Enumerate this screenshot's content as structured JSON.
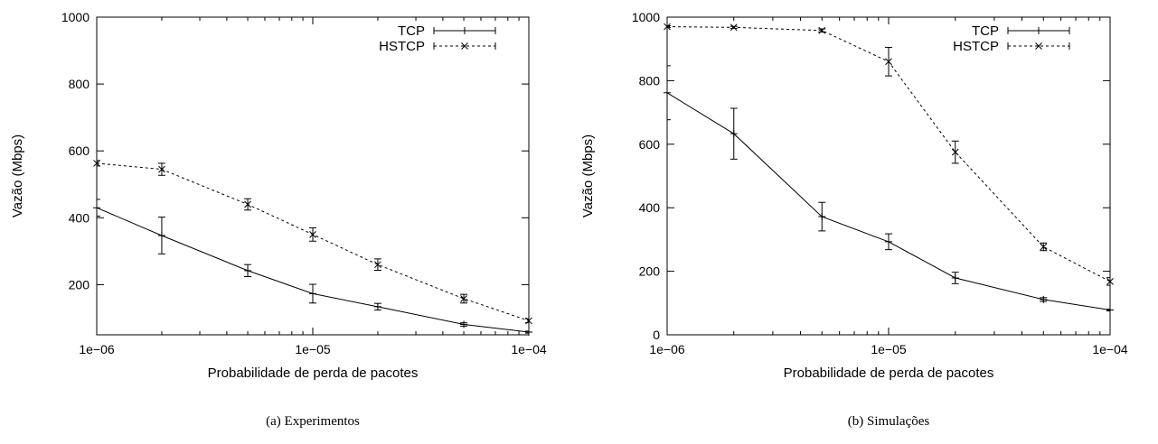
{
  "chart_data": [
    {
      "type": "line",
      "caption": "(a) Experimentos",
      "xlabel": "Probabilidade de perda de pacotes",
      "ylabel": "Vazão (Mbps)",
      "xscale": "log",
      "xlim": [
        1e-06,
        0.0001
      ],
      "ylim": [
        50,
        1000
      ],
      "xticks": [
        1e-06,
        1e-05,
        0.0001
      ],
      "xtick_labels": [
        "1e−06",
        "1e−05",
        "1e−04"
      ],
      "yticks": [
        200,
        400,
        600,
        800,
        1000
      ],
      "ytick_labels": [
        "200",
        "400",
        "600",
        "800",
        "1000"
      ],
      "legend": "top-right",
      "grid": false,
      "x": [
        1e-06,
        2e-06,
        5e-06,
        1e-05,
        2e-05,
        5e-05,
        0.0001
      ],
      "series": [
        {
          "name": "TCP",
          "marker": "+",
          "dash": "solid",
          "values": [
            430,
            347,
            242,
            173,
            134,
            81,
            58
          ],
          "err": [
            25,
            55,
            18,
            28,
            10,
            5,
            3
          ]
        },
        {
          "name": "HSTCP",
          "marker": "x",
          "dash": "dashed",
          "values": [
            563,
            545,
            440,
            350,
            260,
            158,
            92
          ],
          "err": [
            8,
            18,
            17,
            20,
            17,
            13,
            6
          ]
        }
      ]
    },
    {
      "type": "line",
      "caption": "(b) Simulações",
      "xlabel": "Probabilidade de perda de pacotes",
      "ylabel": "Vazão (Mbps)",
      "xscale": "log",
      "xlim": [
        1e-06,
        0.0001
      ],
      "ylim": [
        0,
        1000
      ],
      "xticks": [
        1e-06,
        1e-05,
        0.0001
      ],
      "xtick_labels": [
        "1e−06",
        "1e−05",
        "1e−04"
      ],
      "yticks": [
        0,
        200,
        400,
        600,
        800,
        1000
      ],
      "ytick_labels": [
        "0",
        "200",
        "400",
        "600",
        "800",
        "1000"
      ],
      "legend": "top-right",
      "grid": false,
      "x": [
        1e-06,
        2e-06,
        5e-06,
        1e-05,
        2e-05,
        5e-05,
        0.0001
      ],
      "series": [
        {
          "name": "TCP",
          "marker": "+",
          "dash": "solid",
          "values": [
            762,
            633,
            372,
            293,
            179,
            111,
            78
          ],
          "err": [
            85,
            80,
            45,
            25,
            18,
            6,
            3
          ]
        },
        {
          "name": "HSTCP",
          "marker": "x",
          "dash": "dashed",
          "values": [
            970,
            968,
            958,
            860,
            575,
            277,
            168
          ],
          "err": [
            3,
            3,
            5,
            45,
            35,
            12,
            12
          ]
        }
      ]
    }
  ]
}
